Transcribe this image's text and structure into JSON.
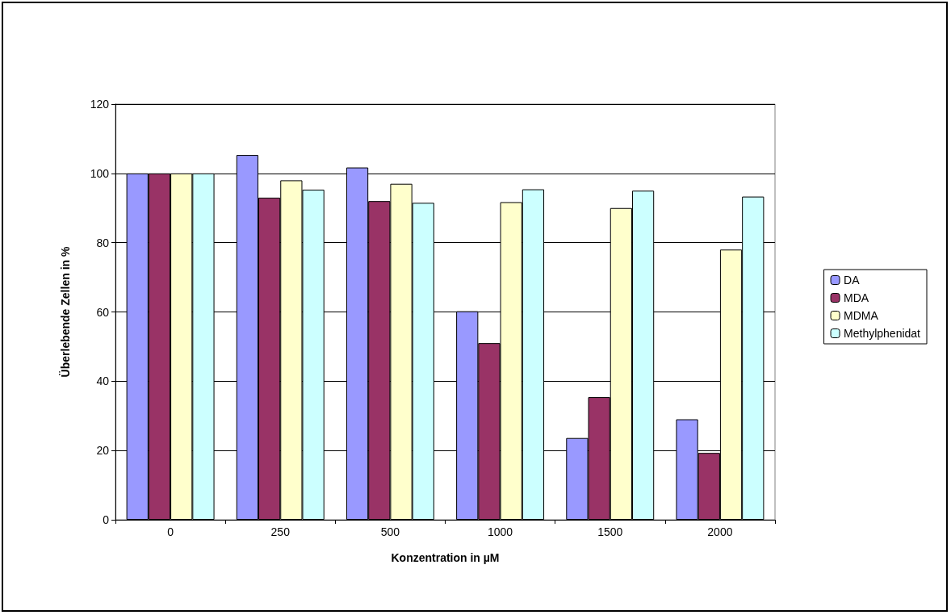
{
  "chart_data": {
    "type": "bar",
    "xlabel": "Konzentration in µM",
    "ylabel": "Überlebende Zellen in %",
    "categories": [
      "0",
      "250",
      "500",
      "1000",
      "1500",
      "2000"
    ],
    "series": [
      {
        "name": "DA",
        "color": "#9999ff",
        "values": [
          100,
          105.3,
          101.7,
          60.2,
          23.6,
          29
        ]
      },
      {
        "name": "MDA",
        "color": "#993366",
        "values": [
          100,
          93,
          92,
          51,
          35.4,
          19.3
        ]
      },
      {
        "name": "MDMA",
        "color": "#ffffcc",
        "values": [
          100,
          98,
          97,
          91.7,
          90,
          78
        ]
      },
      {
        "name": "Methylphenidat",
        "color": "#ccffff",
        "values": [
          100,
          95.3,
          91.5,
          95.4,
          95,
          93.3
        ]
      }
    ],
    "ylim": [
      0,
      120
    ],
    "yticks": [
      0,
      20,
      40,
      60,
      80,
      100,
      120
    ],
    "grid": "y",
    "legend": "right"
  }
}
